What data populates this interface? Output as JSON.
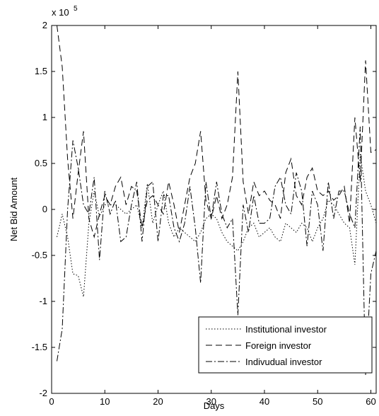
{
  "chart_data": {
    "type": "line",
    "xlabel": "Days",
    "ylabel": "Net Bid Amount",
    "y_exponent_label": "x 10",
    "y_exponent_power": "5",
    "xlim": [
      0,
      61
    ],
    "ylim": [
      -2,
      2
    ],
    "xticks": [
      0,
      10,
      20,
      30,
      40,
      50,
      60
    ],
    "yticks": [
      -2,
      -1.5,
      -1,
      -0.5,
      0,
      0.5,
      1,
      1.5,
      2
    ],
    "ytick_labels": [
      "-2",
      "-1.5",
      "-1",
      "-0.5",
      "0",
      "0.5",
      "1",
      "1.5",
      "2"
    ],
    "grid": false,
    "legend_position": "bottom-right",
    "series": [
      {
        "name": "Institutional investor",
        "dash": "dotted",
        "x": [
          1,
          2,
          3,
          4,
          5,
          6,
          7,
          8,
          9,
          10,
          11,
          12,
          13,
          14,
          15,
          16,
          17,
          18,
          19,
          20,
          21,
          22,
          23,
          24,
          25,
          26,
          27,
          28,
          29,
          30,
          31,
          32,
          33,
          34,
          35,
          36,
          37,
          38,
          39,
          40,
          41,
          42,
          43,
          44,
          45,
          46,
          47,
          48,
          49,
          50,
          51,
          52,
          53,
          54,
          55,
          56,
          57,
          58,
          59,
          60,
          61
        ],
        "values": [
          -0.3,
          -0.05,
          -0.3,
          -0.7,
          -0.72,
          -0.95,
          -0.15,
          0.2,
          -0.08,
          0.05,
          0.05,
          0.05,
          0.0,
          -0.05,
          0.0,
          0.05,
          -0.2,
          0.28,
          -0.15,
          0.05,
          0.2,
          -0.15,
          -0.3,
          -0.2,
          -0.25,
          -0.3,
          -0.35,
          -0.25,
          -0.1,
          -0.05,
          -0.1,
          -0.25,
          -0.35,
          -0.4,
          -0.45,
          -0.35,
          -0.2,
          -0.15,
          -0.3,
          -0.25,
          -0.2,
          -0.3,
          -0.35,
          -0.15,
          -0.2,
          -0.25,
          -0.15,
          -0.2,
          -0.35,
          -0.2,
          -0.1,
          0.1,
          0.05,
          -0.05,
          -0.15,
          -0.2,
          -0.6,
          0.6,
          0.2,
          0.05,
          -0.15
        ]
      },
      {
        "name": "Foreign investor",
        "dash": "dashed",
        "x": [
          1,
          2,
          3,
          4,
          5,
          6,
          7,
          8,
          9,
          10,
          11,
          12,
          13,
          14,
          15,
          16,
          17,
          18,
          19,
          20,
          21,
          22,
          23,
          24,
          25,
          26,
          27,
          28,
          29,
          30,
          31,
          32,
          33,
          34,
          35,
          36,
          37,
          38,
          39,
          40,
          41,
          42,
          43,
          44,
          45,
          46,
          47,
          48,
          49,
          50,
          51,
          52,
          53,
          54,
          55,
          56,
          57,
          58,
          59,
          60,
          61
        ],
        "values": [
          2.0,
          1.55,
          0.55,
          -0.1,
          0.4,
          0.85,
          -0.1,
          -0.3,
          -0.05,
          0.15,
          0.05,
          0.25,
          0.35,
          0.05,
          0.25,
          0.2,
          -0.2,
          0.1,
          0.15,
          0.05,
          -0.05,
          0.3,
          0.05,
          -0.25,
          0.05,
          0.35,
          0.5,
          0.85,
          0.1,
          -0.1,
          0.15,
          -0.1,
          0.05,
          0.35,
          1.5,
          0.3,
          -0.05,
          0.3,
          0.15,
          0.2,
          0.1,
          0.05,
          -0.1,
          0.4,
          0.55,
          0.15,
          0.05,
          0.35,
          0.45,
          0.2,
          0.15,
          0.2,
          0.1,
          0.15,
          0.25,
          -0.15,
          1.0,
          0.3,
          1.62,
          0.62,
          0.65
        ]
      },
      {
        "name": "Indivudual investor",
        "dash": "dashdot",
        "x": [
          1,
          2,
          3,
          4,
          5,
          6,
          7,
          8,
          9,
          10,
          11,
          12,
          13,
          14,
          15,
          16,
          17,
          18,
          19,
          20,
          21,
          22,
          23,
          24,
          25,
          26,
          27,
          28,
          29,
          30,
          31,
          32,
          33,
          34,
          35,
          36,
          37,
          38,
          39,
          40,
          41,
          42,
          43,
          44,
          45,
          46,
          47,
          48,
          49,
          50,
          51,
          52,
          53,
          54,
          55,
          56,
          57,
          58,
          59,
          60,
          61
        ],
        "values": [
          -1.65,
          -1.3,
          0.0,
          0.75,
          0.45,
          0.05,
          -0.05,
          0.35,
          -0.55,
          0.2,
          -0.05,
          0.1,
          -0.35,
          -0.3,
          0.05,
          0.3,
          -0.35,
          0.25,
          0.3,
          -0.35,
          0.15,
          0.15,
          -0.2,
          -0.35,
          -0.15,
          0.25,
          -0.2,
          -0.8,
          0.3,
          -0.1,
          0.3,
          -0.05,
          -0.2,
          -0.1,
          -1.15,
          0.05,
          -0.25,
          0.15,
          -0.15,
          -0.15,
          -0.1,
          0.25,
          0.35,
          0.05,
          -0.05,
          0.4,
          0.2,
          -0.4,
          0.2,
          0.05,
          -0.45,
          0.3,
          -0.1,
          0.2,
          0.2,
          -0.05,
          -0.2,
          0.9,
          -1.8,
          -0.7,
          -0.45
        ]
      }
    ]
  }
}
